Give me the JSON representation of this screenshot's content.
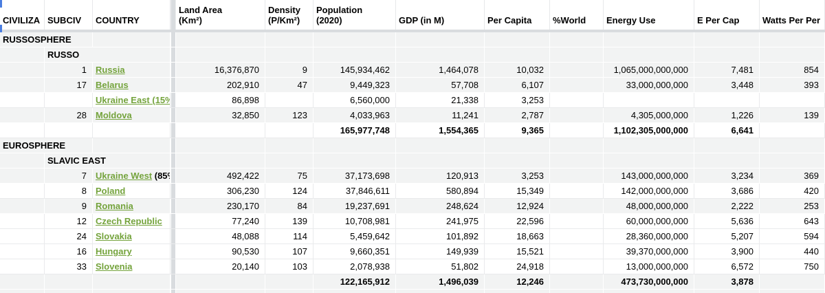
{
  "sheet": {
    "colors": {
      "link_green": "#74a33c",
      "selection_blue": "#4a7de0",
      "divider": "#d9dcdf",
      "shaded_row": "#f2f3f3",
      "grid_line": "#e9eaec"
    },
    "columns": [
      {
        "key": "civilization",
        "label": "CIVILIZA",
        "align": "left"
      },
      {
        "key": "subciv",
        "label": "SUBCIV",
        "align": "left"
      },
      {
        "key": "country",
        "label": "COUNTRY",
        "align": "left"
      },
      {
        "key": "land_area",
        "label": "Land Area\n(Km²)",
        "align": "right"
      },
      {
        "key": "density",
        "label": "Density\n(P/Km²)",
        "align": "right"
      },
      {
        "key": "population",
        "label": "Population\n(2020)",
        "align": "right"
      },
      {
        "key": "gdp",
        "label": "GDP (in M)",
        "align": "right"
      },
      {
        "key": "per_capita",
        "label": "Per Capita",
        "align": "right"
      },
      {
        "key": "pct_world",
        "label": "%World",
        "align": "right"
      },
      {
        "key": "energy_use",
        "label": "Energy Use",
        "align": "right"
      },
      {
        "key": "e_per_cap",
        "label": "E Per Cap",
        "align": "right"
      },
      {
        "key": "watts",
        "label": "Watts Per Per",
        "align": "right"
      }
    ],
    "rows": [
      {
        "type": "section",
        "shaded": true,
        "label": "RUSSOSPHERE"
      },
      {
        "type": "subsection",
        "shaded": true,
        "label": "RUSSO"
      },
      {
        "type": "country",
        "shaded": true,
        "rank": "1",
        "link": "Russia",
        "suffix": "",
        "land_area": "16,376,870",
        "density": "9",
        "population": "145,934,462",
        "gdp": "1,464,078",
        "per_capita": "10,032",
        "pct_world": "",
        "energy_use": "1,065,000,000,000",
        "e_per_cap": "7,481",
        "watts": "854"
      },
      {
        "type": "country",
        "shaded": true,
        "rank": "17",
        "link": "Belarus",
        "suffix": "",
        "land_area": "202,910",
        "density": "47",
        "population": "9,449,323",
        "gdp": "57,708",
        "per_capita": "6,107",
        "pct_world": "",
        "energy_use": "33,000,000,000",
        "e_per_cap": "3,448",
        "watts": "393"
      },
      {
        "type": "country",
        "shaded": false,
        "rank": "",
        "link": "Ukraine East (15%",
        "suffix": "",
        "land_area": "86,898",
        "density": "",
        "population": "6,560,000",
        "gdp": "21,338",
        "per_capita": "3,253",
        "pct_world": "",
        "energy_use": "",
        "e_per_cap": "",
        "watts": ""
      },
      {
        "type": "country",
        "shaded": true,
        "rank": "28",
        "link": "Moldova",
        "suffix": "",
        "land_area": "32,850",
        "density": "123",
        "population": "4,033,963",
        "gdp": "11,241",
        "per_capita": "2,787",
        "pct_world": "",
        "energy_use": "4,305,000,000",
        "e_per_cap": "1,226",
        "watts": "139"
      },
      {
        "type": "total",
        "shaded": false,
        "population": "165,977,748",
        "gdp": "1,554,365",
        "per_capita": "9,365",
        "energy_use": "1,102,305,000,000",
        "e_per_cap": "6,641",
        "watts": ""
      },
      {
        "type": "section",
        "shaded": true,
        "label": "EUROSPHERE"
      },
      {
        "type": "subsection",
        "shaded": true,
        "label": "SLAVIC EAST"
      },
      {
        "type": "country",
        "shaded": true,
        "rank": "7",
        "link": "Ukraine West",
        "suffix": " (85%",
        "land_area": "492,422",
        "density": "75",
        "population": "37,173,698",
        "gdp": "120,913",
        "per_capita": "3,253",
        "pct_world": "",
        "energy_use": "143,000,000,000",
        "e_per_cap": "3,234",
        "watts": "369"
      },
      {
        "type": "country",
        "shaded": false,
        "rank": "8",
        "link": "Poland",
        "suffix": "",
        "land_area": "306,230",
        "density": "124",
        "population": "37,846,611",
        "gdp": "580,894",
        "per_capita": "15,349",
        "pct_world": "",
        "energy_use": "142,000,000,000",
        "e_per_cap": "3,686",
        "watts": "420"
      },
      {
        "type": "country",
        "shaded": true,
        "rank": "9",
        "link": "Romania",
        "suffix": "",
        "land_area": "230,170",
        "density": "84",
        "population": "19,237,691",
        "gdp": "248,624",
        "per_capita": "12,924",
        "pct_world": "",
        "energy_use": "48,000,000,000",
        "e_per_cap": "2,222",
        "watts": "253"
      },
      {
        "type": "country",
        "shaded": false,
        "rank": "12",
        "link": "Czech Republic",
        "suffix": "",
        "land_area": "77,240",
        "density": "139",
        "population": "10,708,981",
        "gdp": "241,975",
        "per_capita": "22,596",
        "pct_world": "",
        "energy_use": "60,000,000,000",
        "e_per_cap": "5,636",
        "watts": "643"
      },
      {
        "type": "country",
        "shaded": false,
        "rank": "24",
        "link": "Slovakia",
        "suffix": "",
        "land_area": "48,088",
        "density": "114",
        "population": "5,459,642",
        "gdp": "101,892",
        "per_capita": "18,663",
        "pct_world": "",
        "energy_use": "28,360,000,000",
        "e_per_cap": "5,207",
        "watts": "594"
      },
      {
        "type": "country",
        "shaded": false,
        "rank": "16",
        "link": "Hungary",
        "suffix": "",
        "land_area": "90,530",
        "density": "107",
        "population": "9,660,351",
        "gdp": "149,939",
        "per_capita": "15,521",
        "pct_world": "",
        "energy_use": "39,370,000,000",
        "e_per_cap": "3,900",
        "watts": "440"
      },
      {
        "type": "country",
        "shaded": false,
        "rank": "33",
        "link": "Slovenia",
        "suffix": "",
        "land_area": "20,140",
        "density": "103",
        "population": "2,078,938",
        "gdp": "51,802",
        "per_capita": "24,918",
        "pct_world": "",
        "energy_use": "13,000,000,000",
        "e_per_cap": "6,572",
        "watts": "750"
      },
      {
        "type": "total",
        "shaded": true,
        "population": "122,165,912",
        "gdp": "1,496,039",
        "per_capita": "12,246",
        "energy_use": "473,730,000,000",
        "e_per_cap": "3,878",
        "watts": ""
      },
      {
        "type": "empty",
        "shaded": true
      }
    ]
  }
}
